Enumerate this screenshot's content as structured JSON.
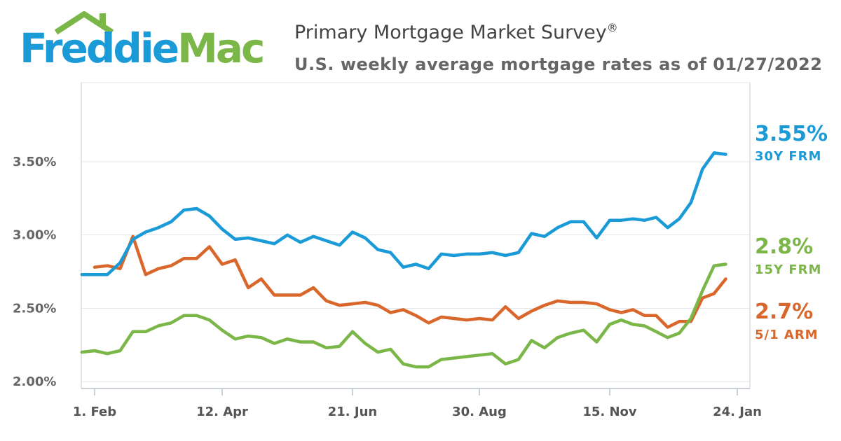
{
  "brand": {
    "name_part1": "Freddie",
    "name_part2": "Mac",
    "colors": {
      "blue": "#1a9ad6",
      "green": "#7ab648"
    }
  },
  "header": {
    "title": "Primary Mortgage Market Survey",
    "title_mark": "®",
    "subtitle": "U.S. weekly average mortgage rates as of 01/27/2022"
  },
  "chart_data": {
    "type": "line",
    "title": "Primary Mortgage Market Survey®",
    "subtitle": "U.S. weekly average mortgage rates as of 01/27/2022",
    "x_tick_labels": [
      "1. Feb",
      "12. Apr",
      "21. Jun",
      "30. Aug",
      "15. Nov",
      "24. Jan"
    ],
    "x_tick_weeks": [
      0,
      10,
      20,
      30,
      40,
      51
    ],
    "x_start_week": -1,
    "x_end_week": 51,
    "y_tick_labels": [
      "2.00%",
      "2.50%",
      "3.00%",
      "3.50%"
    ],
    "y_ticks": [
      2.0,
      2.5,
      3.0,
      3.5
    ],
    "ylim": [
      1.98,
      4.02
    ],
    "grid": true,
    "legend": "end-of-line labels",
    "series": [
      {
        "name": "30Y FRM",
        "color": "#1a9ad6",
        "last_label": "3.55%",
        "values": [
          2.73,
          2.73,
          2.73,
          2.81,
          2.97,
          3.02,
          3.05,
          3.09,
          3.17,
          3.18,
          3.13,
          3.04,
          2.97,
          2.98,
          2.96,
          2.94,
          3.0,
          2.95,
          2.99,
          2.96,
          2.93,
          3.02,
          2.98,
          2.9,
          2.88,
          2.78,
          2.8,
          2.77,
          2.87,
          2.86,
          2.87,
          2.87,
          2.88,
          2.86,
          2.88,
          3.01,
          2.99,
          3.05,
          3.09,
          3.09,
          2.98,
          3.1,
          3.1,
          3.11,
          3.1,
          3.12,
          3.05,
          3.11,
          3.22,
          3.45,
          3.56,
          3.55
        ]
      },
      {
        "name": "15Y FRM",
        "color": "#7ab648",
        "last_label": "2.8%",
        "values": [
          2.2,
          2.21,
          2.19,
          2.21,
          2.34,
          2.34,
          2.38,
          2.4,
          2.45,
          2.45,
          2.42,
          2.35,
          2.29,
          2.31,
          2.3,
          2.26,
          2.29,
          2.27,
          2.27,
          2.23,
          2.24,
          2.34,
          2.26,
          2.2,
          2.22,
          2.12,
          2.1,
          2.1,
          2.15,
          2.16,
          2.17,
          2.18,
          2.19,
          2.12,
          2.15,
          2.28,
          2.23,
          2.3,
          2.33,
          2.35,
          2.27,
          2.39,
          2.42,
          2.39,
          2.38,
          2.34,
          2.3,
          2.33,
          2.43,
          2.62,
          2.79,
          2.8
        ]
      },
      {
        "name": "5/1 ARM",
        "color": "#d9672b",
        "last_label": "2.7%",
        "values": [
          2.78,
          2.79,
          2.77,
          2.99,
          2.73,
          2.77,
          2.79,
          2.84,
          2.84,
          2.92,
          2.8,
          2.83,
          2.64,
          2.7,
          2.59,
          2.59,
          2.59,
          2.64,
          2.55,
          2.52,
          2.53,
          2.54,
          2.52,
          2.47,
          2.49,
          2.45,
          2.4,
          2.44,
          2.43,
          2.42,
          2.43,
          2.42,
          2.51,
          2.43,
          2.48,
          2.52,
          2.55,
          2.54,
          2.54,
          2.53,
          2.49,
          2.47,
          2.49,
          2.45,
          2.45,
          2.37,
          2.41,
          2.41,
          2.57,
          2.6,
          2.7
        ]
      }
    ],
    "series_x_offsets": [
      0,
      0,
      1
    ]
  }
}
